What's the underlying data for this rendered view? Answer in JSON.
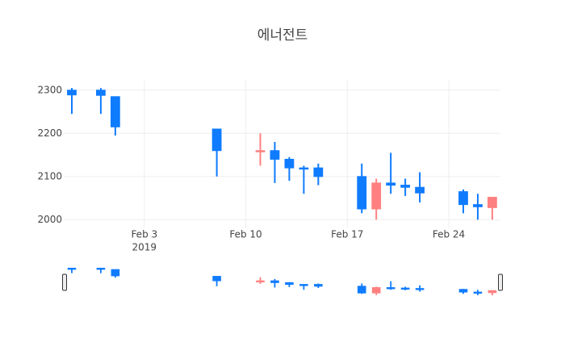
{
  "chart_data": {
    "type": "candlestick",
    "title": "에너전트",
    "x": [
      "2019-01-29",
      "2019-01-31",
      "2019-02-01",
      "2019-02-08",
      "2019-02-11",
      "2019-02-12",
      "2019-02-13",
      "2019-02-14",
      "2019-02-15",
      "2019-02-18",
      "2019-02-19",
      "2019-02-20",
      "2019-02-21",
      "2019-02-22",
      "2019-02-25",
      "2019-02-26",
      "2019-02-27"
    ],
    "open": [
      2300,
      2300,
      2285,
      2210,
      2160,
      2160,
      2140,
      2120,
      2120,
      2100,
      2025,
      2085,
      2080,
      2075,
      2065,
      2035,
      2028
    ],
    "high": [
      2305,
      2305,
      2285,
      2210,
      2200,
      2180,
      2145,
      2125,
      2130,
      2130,
      2095,
      2155,
      2095,
      2110,
      2070,
      2060,
      2052
    ],
    "low": [
      2245,
      2245,
      2195,
      2100,
      2125,
      2085,
      2090,
      2060,
      2080,
      2015,
      2000,
      2060,
      2055,
      2040,
      2015,
      2000,
      2000
    ],
    "close": [
      2289,
      2288,
      2215,
      2160,
      2160,
      2140,
      2120,
      2118,
      2100,
      2025,
      2085,
      2080,
      2075,
      2062,
      2035,
      2030,
      2052
    ],
    "increasing_color": "#ff8080",
    "decreasing_color": "#0f7bff",
    "xlim": [
      "2019-01-28T12:00",
      "2019-02-27T13:30"
    ],
    "xticks": [
      {
        "value": "2019-02-03",
        "label": "Feb 3",
        "sublabel": "2019"
      },
      {
        "value": "2019-02-10",
        "label": "Feb 10"
      },
      {
        "value": "2019-02-17",
        "label": "Feb 17"
      },
      {
        "value": "2019-02-24",
        "label": "Feb 24"
      }
    ],
    "ylim": [
      1982,
      2322
    ],
    "yticks": [
      2000,
      2100,
      2200,
      2300
    ],
    "grid": true,
    "rangeslider": true
  }
}
